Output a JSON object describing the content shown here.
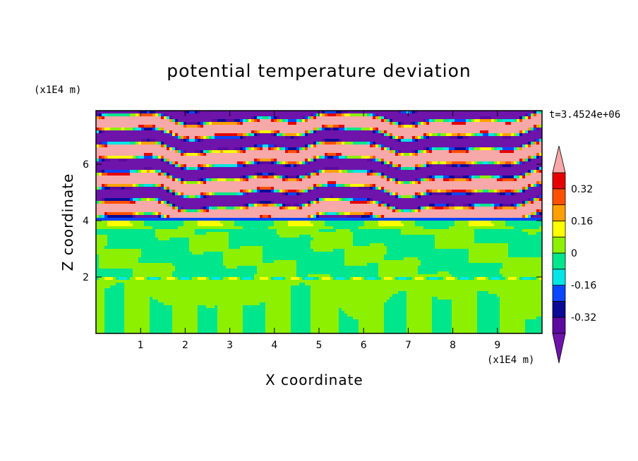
{
  "chart_data": {
    "type": "heatmap",
    "title": "potential temperature deviation",
    "xlabel": "X coordinate",
    "ylabel": "Z coordinate",
    "x_unit": "(x1E4 m)",
    "y_unit": "(x1E4 m)",
    "time_label": "t=3.4524e+06",
    "xlim": [
      0,
      10
    ],
    "ylim": [
      0,
      7.9
    ],
    "x_ticks": [
      "1",
      "2",
      "3",
      "4",
      "5",
      "6",
      "7",
      "8",
      "9"
    ],
    "y_ticks": [
      "2",
      "4",
      "6"
    ],
    "colorbar": {
      "levels": [
        -0.4,
        -0.32,
        -0.24,
        -0.16,
        -0.08,
        0,
        0.08,
        0.16,
        0.24,
        0.32,
        0.4
      ],
      "colors": [
        "#5b0aa0",
        "#0a0a96",
        "#0a46ff",
        "#00e6e6",
        "#00e68c",
        "#8cf000",
        "#ffff00",
        "#ffa000",
        "#ff5000",
        "#e60000"
      ],
      "under_color": "#6e14aa",
      "over_color": "#f7a8a8",
      "labels": [
        "0.32",
        "0.16",
        "0",
        "-0.16",
        "-0.32"
      ]
    },
    "regions": [
      {
        "z_range": [
          4.1,
          7.9
        ],
        "description_values": [
          -0.44,
          0.44
        ]
      },
      {
        "z_range": [
          2.0,
          4.1
        ],
        "description_values": [
          0,
          0.08
        ]
      },
      {
        "z_range": [
          0,
          2.0
        ],
        "description_values": [
          0,
          0.08
        ]
      }
    ]
  }
}
